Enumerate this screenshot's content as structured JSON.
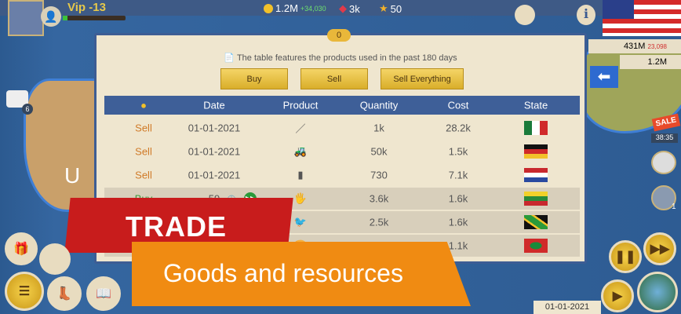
{
  "header": {
    "vip": "Vip -13",
    "xp_progress": 0.08,
    "money": "1.2M",
    "money_delta": "+34,030",
    "gems": "3k",
    "stars": "50"
  },
  "side_stats": {
    "gdp": "431M",
    "gdp_delta": "23,098",
    "treasury": "1.2M"
  },
  "panel": {
    "badge": "0",
    "note": "The table features the products used in the past 180 days",
    "buttons": {
      "buy": "Buy",
      "sell": "Sell",
      "sell_all": "Sell Everything"
    },
    "columns": [
      "Date",
      "Product",
      "Quantity",
      "Cost",
      "State"
    ],
    "rows": [
      {
        "type": "Sell",
        "date": "01-01-2021",
        "quantity": "1k",
        "cost": "28.2k",
        "flag": "mexico"
      },
      {
        "type": "Sell",
        "date": "01-01-2021",
        "quantity": "50k",
        "cost": "1.5k",
        "flag": "germany"
      },
      {
        "type": "Sell",
        "date": "01-01-2021",
        "quantity": "730",
        "cost": "7.1k",
        "flag": "netherlands"
      },
      {
        "type": "Buy",
        "date": "59",
        "quantity": "3.6k",
        "cost": "1.6k",
        "flag": "lithuania"
      },
      {
        "type": "",
        "date": "",
        "quantity": "2.5k",
        "cost": "1.6k",
        "flag": "jamaica"
      },
      {
        "type": "",
        "date": "",
        "quantity": "1k",
        "cost": "1.1k",
        "flag": "maldives"
      }
    ]
  },
  "promo": {
    "title": "TRADE",
    "subtitle": "Goods and resources"
  },
  "mail_count": "6",
  "sale_label": "SALE",
  "sale_timer": "38:35",
  "advisor_count": "1",
  "game_date": "01-01-2021",
  "colors": {
    "sell": "#d07a28",
    "buy": "#3c9a3c",
    "header": "#3e5f98",
    "trade_red": "#c81c1c",
    "orange": "#f08b12"
  }
}
